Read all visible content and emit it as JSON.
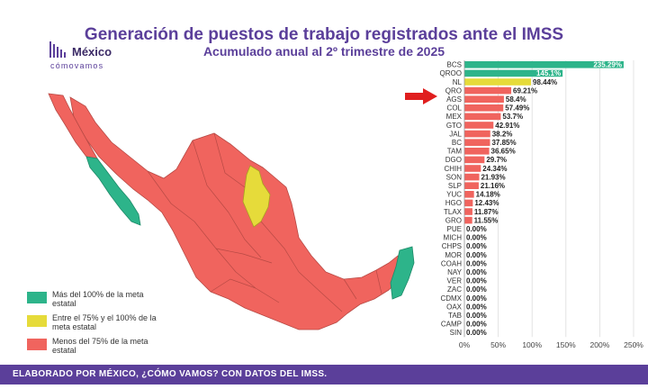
{
  "header": {
    "title": "Generación de puestos de trabajo registrados ante el IMSS",
    "subtitle": "Acumulado anual al 2º trimestre de 2025"
  },
  "logo": {
    "name": "México",
    "tagline": "cómovamos"
  },
  "legend": {
    "items": [
      {
        "label": "Más del 100% de la meta estatal",
        "color": "#2db48a"
      },
      {
        "label": "Entre el 75% y el 100% de la meta estatal",
        "color": "#e6db3a"
      },
      {
        "label": "Menos del 75% de la meta estatal",
        "color": "#f0645e"
      }
    ]
  },
  "colors": {
    "above_100": "#2db48a",
    "between_75_100": "#e6db3a",
    "below_75": "#f0645e",
    "brand_purple": "#5b3f9a",
    "arrow": "#e01e1e"
  },
  "highlight": {
    "state": "QRO",
    "marker": "red-arrow"
  },
  "footer": {
    "text": "ELABORADO POR MÉXICO, ¿CÓMO VAMOS? CON DATOS DEL IMSS."
  },
  "chart_data": {
    "type": "bar",
    "orientation": "horizontal",
    "xlim": [
      0,
      250
    ],
    "xticks": [
      "0%",
      "50%",
      "100%",
      "150%",
      "200%",
      "250%"
    ],
    "categories": [
      "BCS",
      "QROO",
      "NL",
      "QRO",
      "AGS",
      "COL",
      "MEX",
      "GTO",
      "JAL",
      "BC",
      "TAM",
      "DGO",
      "CHIH",
      "SON",
      "SLP",
      "YUC",
      "HGO",
      "TLAX",
      "GRO",
      "PUE",
      "MICH",
      "CHPS",
      "MOR",
      "COAH",
      "NAY",
      "VER",
      "ZAC",
      "CDMX",
      "OAX",
      "TAB",
      "CAMP",
      "SIN"
    ],
    "values": [
      235.29,
      145.1,
      98.44,
      69.21,
      58.4,
      57.49,
      53.7,
      42.91,
      38.2,
      37.85,
      36.65,
      29.7,
      24.34,
      21.93,
      21.16,
      14.18,
      12.43,
      11.87,
      11.55,
      0,
      0,
      0,
      0,
      0,
      0,
      0,
      0,
      0,
      0,
      0,
      0,
      0
    ],
    "labels": [
      "235.29%",
      "145.1%",
      "98.44%",
      "69.21%",
      "58.4%",
      "57.49%",
      "53.7%",
      "42.91%",
      "38.2%",
      "37.85%",
      "36.65%",
      "29.7%",
      "24.34%",
      "21.93%",
      "21.16%",
      "14.18%",
      "12.43%",
      "11.87%",
      "11.55%",
      "0.00%",
      "0.00%",
      "0.00%",
      "0.00%",
      "0.00%",
      "0.00%",
      "0.00%",
      "0.00%",
      "0.00%",
      "0.00%",
      "0.00%",
      "0.00%",
      "0.00%"
    ],
    "grid": true
  }
}
